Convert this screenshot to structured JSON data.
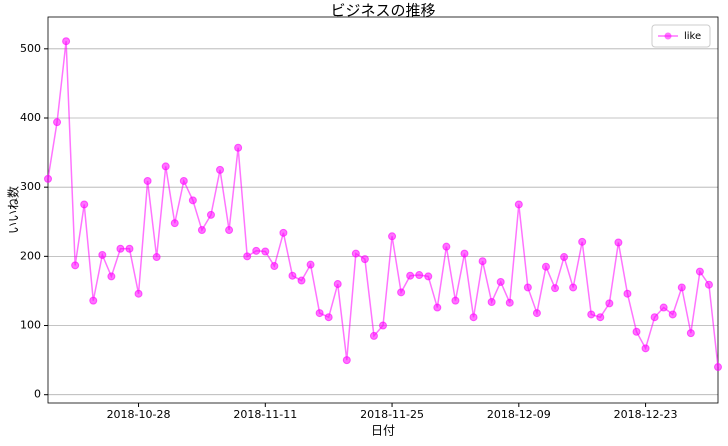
{
  "chart_data": {
    "type": "line",
    "title": "ビジネスの推移",
    "x_label": "日付",
    "y_label": "いいね数",
    "x": [
      "2018-10-18",
      "2018-10-19",
      "2018-10-20",
      "2018-10-21",
      "2018-10-22",
      "2018-10-23",
      "2018-10-24",
      "2018-10-25",
      "2018-10-26",
      "2018-10-27",
      "2018-10-28",
      "2018-10-29",
      "2018-10-30",
      "2018-10-31",
      "2018-11-01",
      "2018-11-02",
      "2018-11-03",
      "2018-11-04",
      "2018-11-05",
      "2018-11-06",
      "2018-11-07",
      "2018-11-08",
      "2018-11-09",
      "2018-11-10",
      "2018-11-11",
      "2018-11-12",
      "2018-11-13",
      "2018-11-14",
      "2018-11-15",
      "2018-11-16",
      "2018-11-17",
      "2018-11-18",
      "2018-11-19",
      "2018-11-20",
      "2018-11-21",
      "2018-11-22",
      "2018-11-23",
      "2018-11-24",
      "2018-11-25",
      "2018-11-26",
      "2018-11-27",
      "2018-11-28",
      "2018-11-29",
      "2018-11-30",
      "2018-12-01",
      "2018-12-02",
      "2018-12-03",
      "2018-12-04",
      "2018-12-05",
      "2018-12-06",
      "2018-12-07",
      "2018-12-08",
      "2018-12-09",
      "2018-12-10",
      "2018-12-11",
      "2018-12-12",
      "2018-12-13",
      "2018-12-14",
      "2018-12-15",
      "2018-12-16",
      "2018-12-17",
      "2018-12-18",
      "2018-12-19",
      "2018-12-20",
      "2018-12-21",
      "2018-12-22",
      "2018-12-23",
      "2018-12-24",
      "2018-12-25",
      "2018-12-26",
      "2018-12-27",
      "2018-12-28",
      "2018-12-29",
      "2018-12-30",
      "2018-12-31"
    ],
    "series": [
      {
        "name": "like",
        "color": "#ff00ff",
        "values": [
          312,
          394,
          511,
          187,
          275,
          136,
          202,
          171,
          211,
          211,
          146,
          309,
          199,
          330,
          248,
          309,
          281,
          238,
          260,
          325,
          238,
          357,
          200,
          208,
          207,
          186,
          234,
          172,
          165,
          188,
          118,
          112,
          160,
          50,
          204,
          196,
          85,
          100,
          229,
          148,
          172,
          173,
          171,
          126,
          214,
          136,
          204,
          112,
          193,
          134,
          163,
          133,
          275,
          155,
          118,
          185,
          154,
          199,
          155,
          221,
          116,
          112,
          132,
          220,
          146,
          91,
          67,
          112,
          126,
          116,
          155,
          89,
          178,
          159,
          40
        ]
      }
    ],
    "xlim": [
      "2018-10-18",
      "2018-12-31"
    ],
    "xticks": [
      "2018-10-28",
      "2018-11-11",
      "2018-11-25",
      "2018-12-09",
      "2018-12-23"
    ],
    "ylim": [
      -12,
      546
    ],
    "yticks": [
      0,
      100,
      200,
      300,
      400,
      500
    ],
    "grid": true,
    "legend": "upper right"
  }
}
